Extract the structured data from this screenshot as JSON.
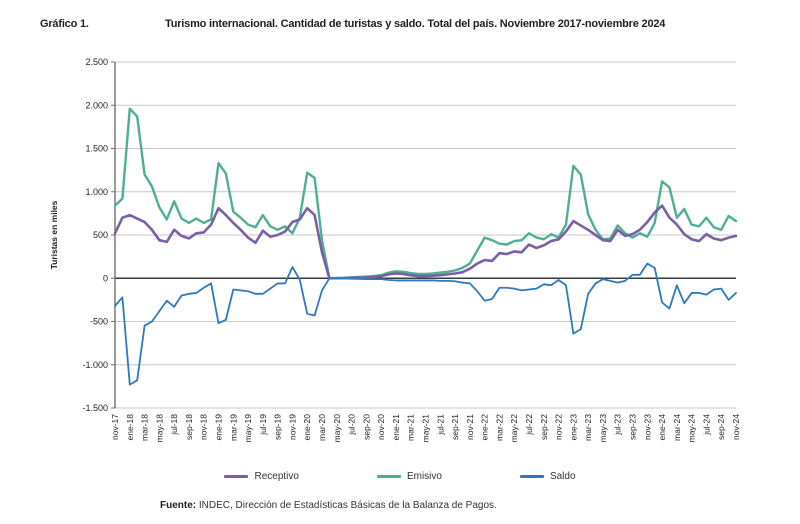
{
  "header": {
    "figure_label": "Gráfico 1.",
    "title": "Turismo internacional. Cantidad de turistas y saldo. Total del país. Noviembre 2017-noviembre 2024"
  },
  "chart_data": {
    "type": "line",
    "title": "Turismo internacional. Cantidad de turistas y saldo. Total del país. Noviembre 2017-noviembre 2024",
    "xlabel": "",
    "ylabel": "Turistas en miles",
    "ylim": [
      -1500,
      2500
    ],
    "grid": true,
    "legend_position": "bottom",
    "ytick_values": [
      2500,
      2000,
      1500,
      1000,
      500,
      0,
      -500,
      -1000,
      -1500
    ],
    "ytick_labels": [
      "2.500",
      "2.000",
      "1.500",
      "1.000",
      "500",
      "0",
      "-500",
      "-1.000",
      "-1.500"
    ],
    "x": [
      "nov-17",
      "dic-17",
      "ene-18",
      "feb-18",
      "mar-18",
      "abr-18",
      "may-18",
      "jun-18",
      "jul-18",
      "ago-18",
      "sep-18",
      "oct-18",
      "nov-18",
      "dic-18",
      "ene-19",
      "feb-19",
      "mar-19",
      "abr-19",
      "may-19",
      "jun-19",
      "jul-19",
      "ago-19",
      "sep-19",
      "oct-19",
      "nov-19",
      "dic-19",
      "ene-20",
      "feb-20",
      "mar-20",
      "abr-20",
      "may-20",
      "jun-20",
      "jul-20",
      "ago-20",
      "sep-20",
      "oct-20",
      "nov-20",
      "dic-20",
      "ene-21",
      "feb-21",
      "mar-21",
      "abr-21",
      "may-21",
      "jun-21",
      "jul-21",
      "ago-21",
      "sep-21",
      "oct-21",
      "nov-21",
      "dic-21",
      "ene-22",
      "feb-22",
      "mar-22",
      "abr-22",
      "may-22",
      "jun-22",
      "jul-22",
      "ago-22",
      "sep-22",
      "oct-22",
      "nov-22",
      "dic-22",
      "ene-23",
      "feb-23",
      "mar-23",
      "abr-23",
      "may-23",
      "jun-23",
      "jul-23",
      "ago-23",
      "sep-23",
      "oct-23",
      "nov-23",
      "dic-23",
      "ene-24",
      "feb-24",
      "mar-24",
      "abr-24",
      "may-24",
      "jun-24",
      "jul-24",
      "ago-24",
      "sep-24",
      "oct-24",
      "nov-24"
    ],
    "x_tick_labels": [
      "nov-17",
      "ene-18",
      "mar-18",
      "may-18",
      "jul-18",
      "sep-18",
      "nov-18",
      "ene-19",
      "mar-19",
      "may-19",
      "jul-19",
      "sep-19",
      "nov-19",
      "ene-20",
      "mar-20",
      "may-20",
      "jul-20",
      "sep-20",
      "nov-20",
      "ene-21",
      "mar-21",
      "may-21",
      "jul-21",
      "sep-21",
      "nov-21",
      "ene-22",
      "mar-22",
      "may-22",
      "jul-22",
      "sep-22",
      "nov-22",
      "ene-23",
      "mar-23",
      "may-23",
      "jul-23",
      "sep-23",
      "nov-23",
      "ene-24",
      "mar-24",
      "may-24",
      "jul-24",
      "sep-24",
      "nov-24"
    ],
    "series": [
      {
        "name": "Receptivo",
        "color": "#7a5fa5",
        "values": [
          520,
          700,
          730,
          690,
          650,
          560,
          440,
          420,
          560,
          490,
          460,
          520,
          530,
          620,
          810,
          730,
          640,
          560,
          470,
          410,
          550,
          480,
          500,
          540,
          650,
          680,
          810,
          730,
          300,
          0,
          1,
          2,
          5,
          8,
          10,
          15,
          25,
          45,
          55,
          50,
          35,
          25,
          25,
          30,
          35,
          45,
          55,
          70,
          110,
          170,
          210,
          200,
          290,
          280,
          310,
          300,
          390,
          350,
          380,
          430,
          450,
          540,
          660,
          610,
          560,
          500,
          440,
          430,
          560,
          490,
          510,
          560,
          650,
          760,
          840,
          700,
          620,
          510,
          450,
          430,
          510,
          460,
          440,
          470,
          490
        ]
      },
      {
        "name": "Emisivo",
        "color": "#4fae95",
        "values": [
          840,
          920,
          1960,
          1870,
          1200,
          1060,
          820,
          680,
          890,
          690,
          640,
          690,
          640,
          680,
          1330,
          1210,
          770,
          700,
          620,
          590,
          730,
          600,
          560,
          600,
          520,
          700,
          1220,
          1160,
          440,
          1,
          2,
          5,
          10,
          15,
          20,
          25,
          35,
          65,
          80,
          75,
          60,
          50,
          50,
          55,
          65,
          75,
          90,
          120,
          170,
          320,
          470,
          440,
          400,
          390,
          430,
          440,
          520,
          470,
          450,
          510,
          470,
          620,
          1300,
          1200,
          740,
          560,
          450,
          460,
          610,
          520,
          470,
          520,
          480,
          640,
          1120,
          1050,
          700,
          800,
          620,
          600,
          700,
          590,
          560,
          720,
          660
        ]
      },
      {
        "name": "Saldo",
        "color": "#2e78c1",
        "values": [
          -320,
          -220,
          -1230,
          -1180,
          -550,
          -500,
          -380,
          -260,
          -330,
          -200,
          -180,
          -170,
          -110,
          -60,
          -520,
          -480,
          -130,
          -140,
          -150,
          -180,
          -180,
          -120,
          -60,
          -60,
          130,
          -20,
          -410,
          -430,
          -140,
          -1,
          -1,
          -3,
          -5,
          -7,
          -10,
          -10,
          -10,
          -20,
          -25,
          -25,
          -25,
          -25,
          -25,
          -25,
          -30,
          -30,
          -35,
          -50,
          -60,
          -150,
          -260,
          -240,
          -110,
          -110,
          -120,
          -140,
          -130,
          -120,
          -70,
          -80,
          -20,
          -80,
          -640,
          -590,
          -180,
          -60,
          -10,
          -30,
          -50,
          -30,
          40,
          40,
          170,
          120,
          -280,
          -350,
          -80,
          -290,
          -170,
          -170,
          -190,
          -130,
          -120,
          -250,
          -170
        ]
      }
    ]
  },
  "footer": {
    "source_label": "Fuente:",
    "source_text": " INDEC, Dirección de Estadísticas Básicas de la Balanza de Pagos."
  }
}
